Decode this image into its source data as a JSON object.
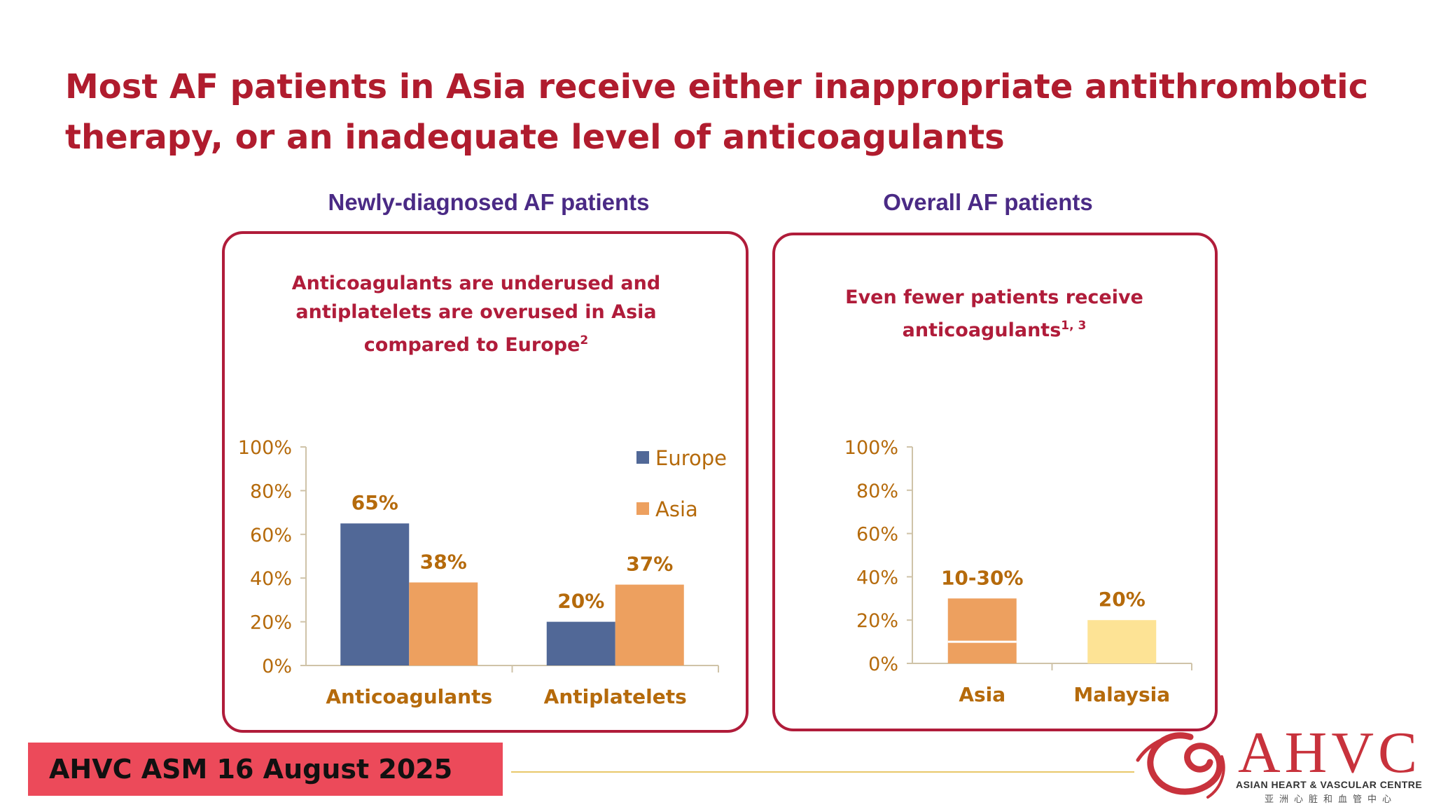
{
  "slide": {
    "title": "Most AF patients in Asia receive either inappropriate antithrombotic therapy, or an inadequate level of anticoagulants"
  },
  "left_panel": {
    "heading": "Newly-diagnosed AF patients",
    "subtitle_main": "Anticoagulants are underused and antiplatelets are overused in Asia compared to Europe",
    "subtitle_sup": "2"
  },
  "right_panel": {
    "heading": "Overall AF patients",
    "subtitle_main": "Even fewer patients receive anticoagulants",
    "subtitle_sup": "1, 3"
  },
  "chart_data": [
    {
      "type": "bar",
      "categories": [
        "Anticoagulants",
        "Antiplatelets"
      ],
      "series": [
        {
          "name": "Europe",
          "values": [
            65,
            20
          ],
          "labels": [
            "65%",
            "20%"
          ],
          "color": "#516897"
        },
        {
          "name": "Asia",
          "values": [
            38,
            37
          ],
          "labels": [
            "38%",
            "37%"
          ],
          "color": "#eda05f"
        }
      ],
      "yticks": [
        "0%",
        "20%",
        "40%",
        "60%",
        "80%",
        "100%"
      ],
      "ylim": [
        0,
        100
      ],
      "legend": "right"
    },
    {
      "type": "bar",
      "categories": [
        "Asia",
        "Malaysia"
      ],
      "values": [
        30,
        20
      ],
      "range_low": [
        10,
        null
      ],
      "labels": [
        "10-30%",
        "20%"
      ],
      "colors": [
        "#eda05f",
        "#fde395"
      ],
      "yticks": [
        "0%",
        "20%",
        "40%",
        "60%",
        "80%",
        "100%"
      ],
      "ylim": [
        0,
        100
      ]
    }
  ],
  "footer": {
    "event": "AHVC ASM 16 August 2025"
  },
  "logo": {
    "mark": "AHVC",
    "name": "ASIAN HEART & VASCULAR CENTRE",
    "chinese": "亚洲心脏和血管中心",
    "accent_color": "#c8323c"
  }
}
